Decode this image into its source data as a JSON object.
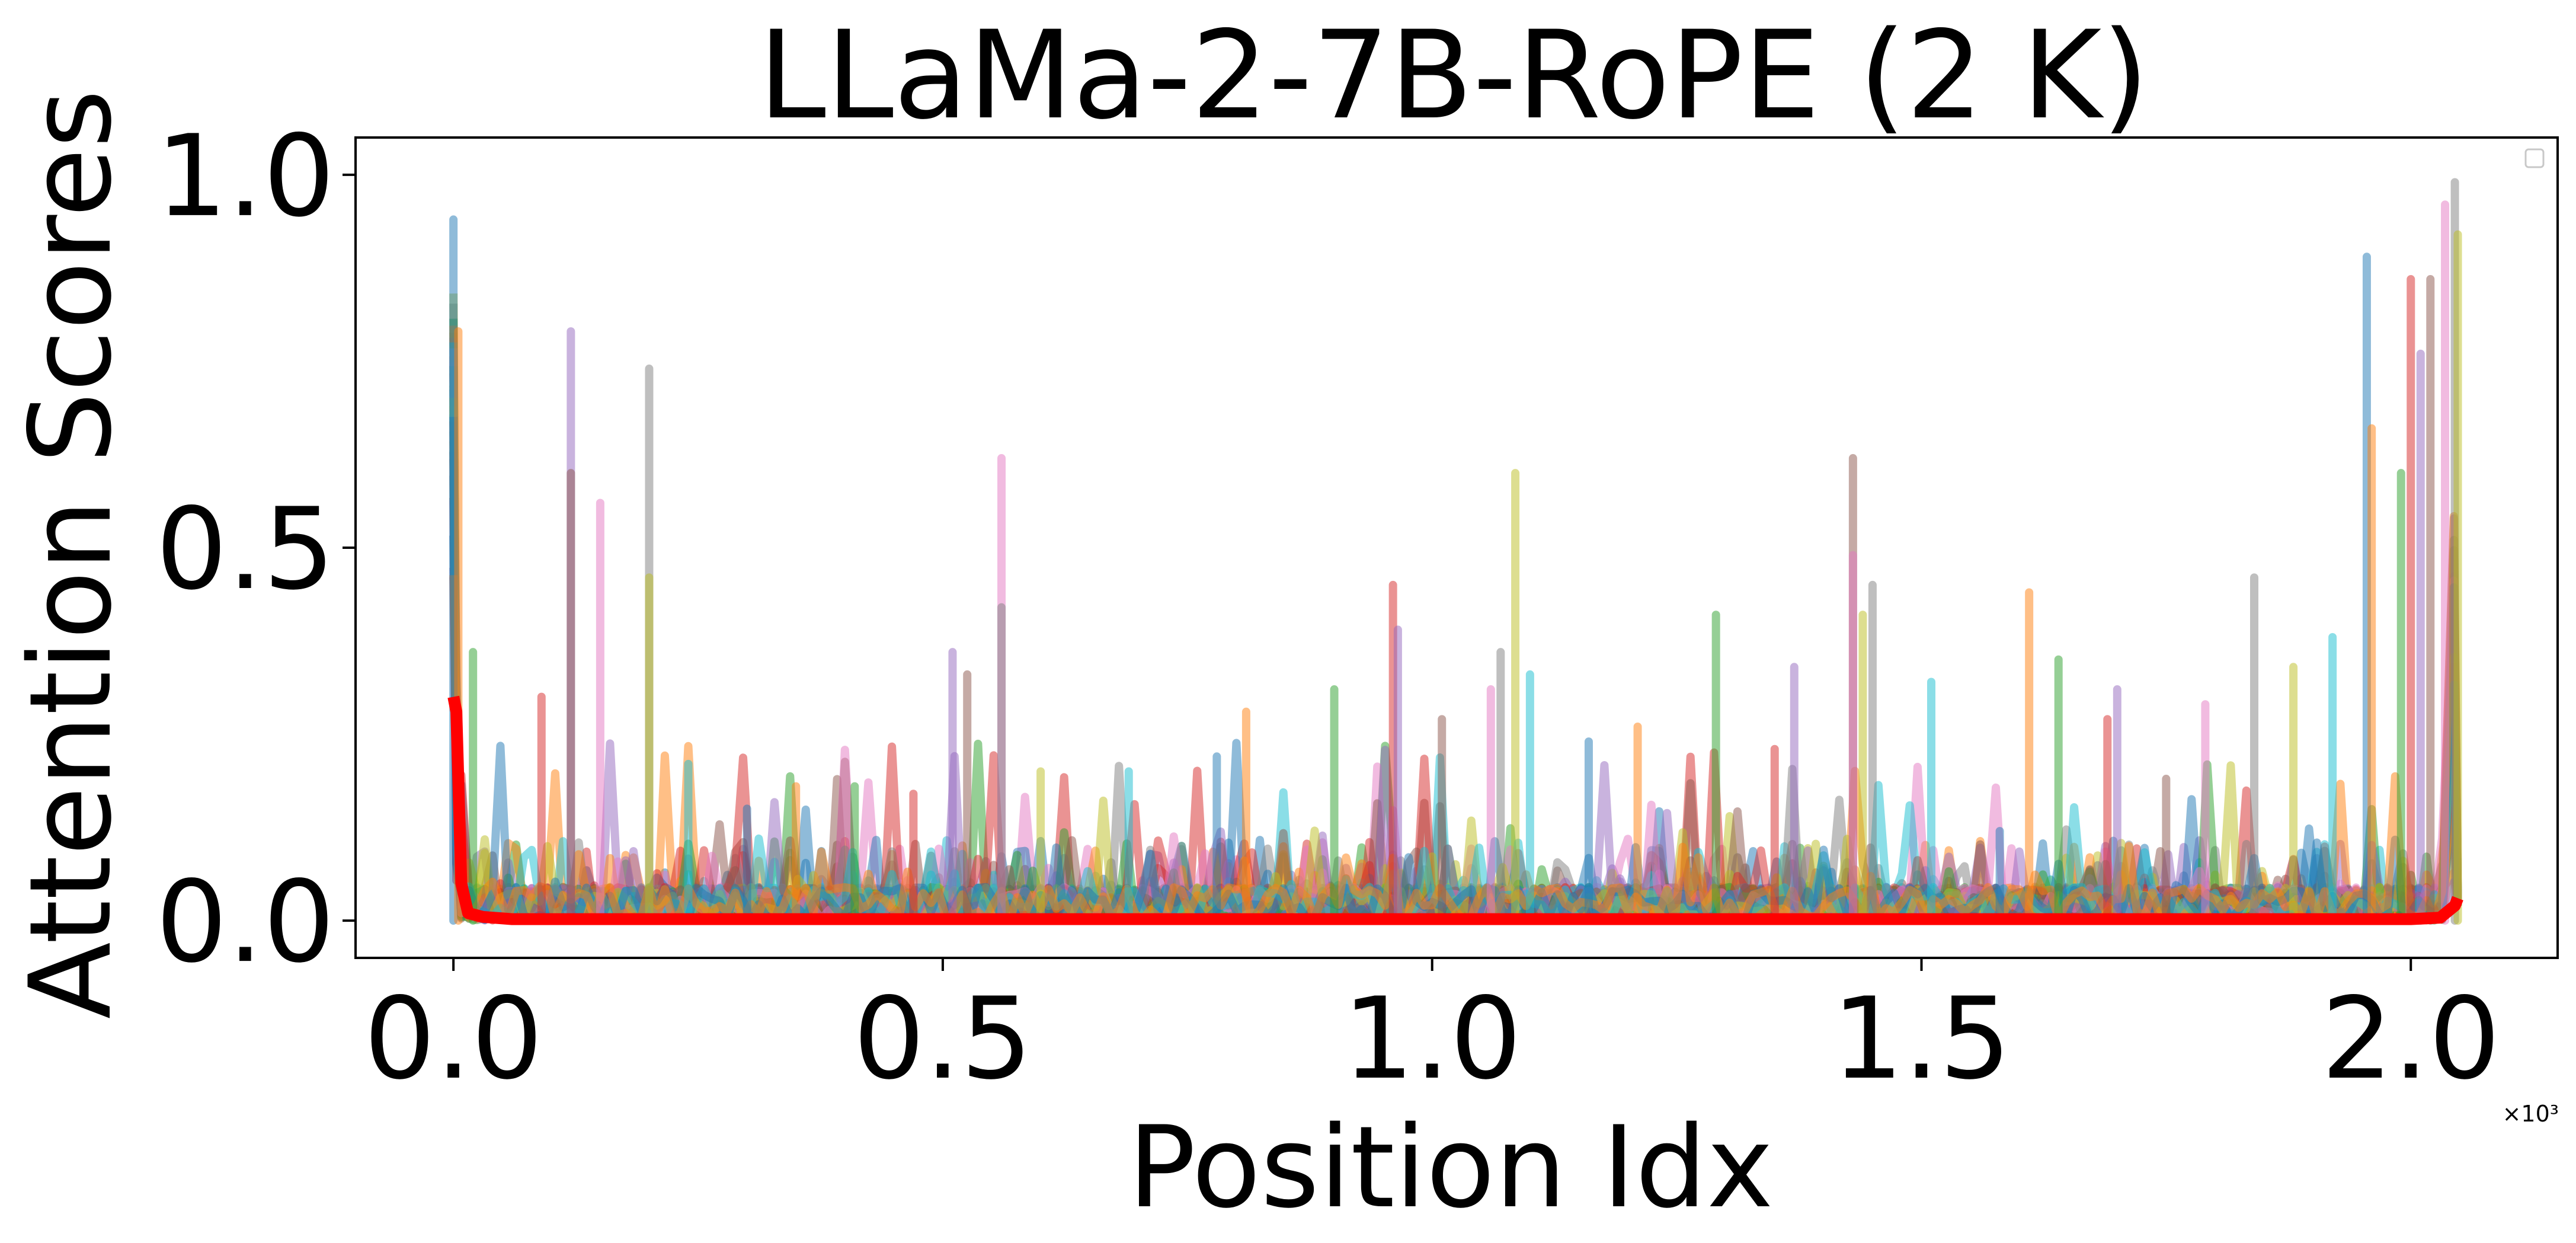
{
  "chart_data": {
    "type": "line",
    "title": "LLaMa-2-7B-RoPE (2 K)",
    "xlabel": "Position Idx",
    "ylabel": "Attention Scores",
    "x_multiplier_label": "×10³",
    "x_ticks": [
      "0.0",
      "0.5",
      "1.0",
      "1.5",
      "2.0"
    ],
    "y_ticks": [
      "0.0",
      "0.5",
      "1.0"
    ],
    "xlim": [
      -100,
      2150
    ],
    "ylim": [
      -0.05,
      1.05
    ],
    "grid": false,
    "legend": "top-right (empty)",
    "series_colors": [
      "#1f77b4",
      "#ff7f0e",
      "#2ca02c",
      "#d62728",
      "#9467bd",
      "#8c564b",
      "#e377c2",
      "#7f7f7f",
      "#bcbd22",
      "#17becf"
    ],
    "n_background_series": 32,
    "background_series_alpha": 0.5,
    "peaks": [
      {
        "x": 0,
        "y": 0.94
      },
      {
        "x": 5,
        "y": 0.79
      },
      {
        "x": 20,
        "y": 0.36
      },
      {
        "x": 90,
        "y": 0.3
      },
      {
        "x": 120,
        "y": 0.79
      },
      {
        "x": 120,
        "y": 0.6
      },
      {
        "x": 150,
        "y": 0.56
      },
      {
        "x": 200,
        "y": 0.74
      },
      {
        "x": 200,
        "y": 0.46
      },
      {
        "x": 240,
        "y": 0.21
      },
      {
        "x": 300,
        "y": 0.15
      },
      {
        "x": 350,
        "y": 0.18
      },
      {
        "x": 410,
        "y": 0.18
      },
      {
        "x": 470,
        "y": 0.17
      },
      {
        "x": 510,
        "y": 0.36
      },
      {
        "x": 525,
        "y": 0.33
      },
      {
        "x": 560,
        "y": 0.62
      },
      {
        "x": 560,
        "y": 0.42
      },
      {
        "x": 600,
        "y": 0.2
      },
      {
        "x": 690,
        "y": 0.2
      },
      {
        "x": 780,
        "y": 0.22
      },
      {
        "x": 810,
        "y": 0.28
      },
      {
        "x": 900,
        "y": 0.31
      },
      {
        "x": 960,
        "y": 0.45
      },
      {
        "x": 965,
        "y": 0.39
      },
      {
        "x": 1010,
        "y": 0.27
      },
      {
        "x": 1060,
        "y": 0.31
      },
      {
        "x": 1070,
        "y": 0.36
      },
      {
        "x": 1085,
        "y": 0.6
      },
      {
        "x": 1100,
        "y": 0.33
      },
      {
        "x": 1160,
        "y": 0.24
      },
      {
        "x": 1210,
        "y": 0.26
      },
      {
        "x": 1290,
        "y": 0.41
      },
      {
        "x": 1350,
        "y": 0.23
      },
      {
        "x": 1370,
        "y": 0.34
      },
      {
        "x": 1430,
        "y": 0.62
      },
      {
        "x": 1430,
        "y": 0.49
      },
      {
        "x": 1450,
        "y": 0.45
      },
      {
        "x": 1440,
        "y": 0.41
      },
      {
        "x": 1510,
        "y": 0.32
      },
      {
        "x": 1580,
        "y": 0.12
      },
      {
        "x": 1610,
        "y": 0.44
      },
      {
        "x": 1640,
        "y": 0.35
      },
      {
        "x": 1690,
        "y": 0.27
      },
      {
        "x": 1700,
        "y": 0.31
      },
      {
        "x": 1750,
        "y": 0.19
      },
      {
        "x": 1790,
        "y": 0.29
      },
      {
        "x": 1840,
        "y": 0.46
      },
      {
        "x": 1880,
        "y": 0.34
      },
      {
        "x": 1920,
        "y": 0.38
      },
      {
        "x": 1955,
        "y": 0.89
      },
      {
        "x": 1960,
        "y": 0.66
      },
      {
        "x": 1990,
        "y": 0.6
      },
      {
        "x": 2000,
        "y": 0.86
      },
      {
        "x": 2010,
        "y": 0.76
      },
      {
        "x": 2020,
        "y": 0.86
      },
      {
        "x": 2035,
        "y": 0.96
      },
      {
        "x": 2045,
        "y": 0.99
      },
      {
        "x": 2048,
        "y": 0.92
      }
    ],
    "highlight_series": {
      "name": "",
      "color": "#ff0000",
      "x": [
        0,
        3,
        8,
        15,
        30,
        60,
        200,
        500,
        1000,
        1500,
        2000,
        2030,
        2045,
        2048
      ],
      "values": [
        0.3,
        0.28,
        0.05,
        0.01,
        0.005,
        0.002,
        0.002,
        0.002,
        0.002,
        0.002,
        0.002,
        0.004,
        0.02,
        0.03
      ]
    }
  }
}
